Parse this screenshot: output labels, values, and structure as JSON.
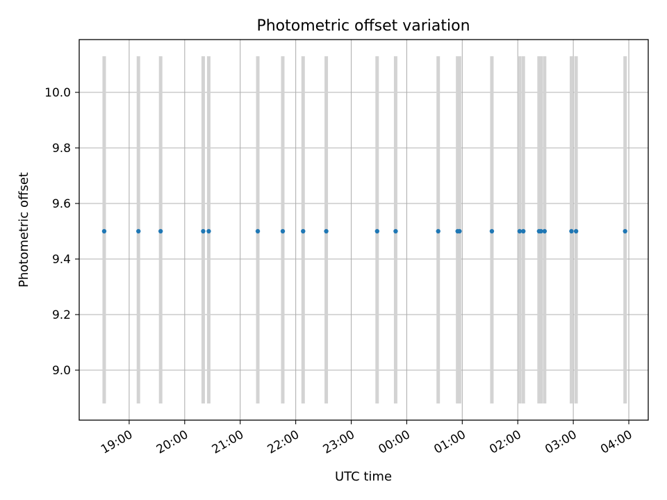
{
  "chart_data": {
    "type": "scatter",
    "title": "Photometric offset variation",
    "xlabel": "UTC time",
    "ylabel": "Photometric offset",
    "x_unit": "UTC time (HH:MM, wraps past midnight)",
    "xlim": [
      "18:06",
      "04:21"
    ],
    "ylim": [
      8.82,
      10.19
    ],
    "x_ticks": [
      "19:00",
      "20:00",
      "21:00",
      "22:00",
      "23:00",
      "00:00",
      "01:00",
      "02:00",
      "03:00",
      "04:00"
    ],
    "y_ticks": [
      "9.0",
      "9.2",
      "9.4",
      "9.6",
      "9.8",
      "10.0"
    ],
    "y_tick_values": [
      9.0,
      9.2,
      9.4,
      9.6,
      9.8,
      10.0
    ],
    "grid": true,
    "error_bar_range": [
      8.88,
      10.13
    ],
    "error_bar_color": "#d3d3d3",
    "point_color": "#1f77b4",
    "points": [
      {
        "time": "18:33",
        "offset": 9.5
      },
      {
        "time": "19:10",
        "offset": 9.5
      },
      {
        "time": "19:34",
        "offset": 9.5
      },
      {
        "time": "20:20",
        "offset": 9.5
      },
      {
        "time": "20:26",
        "offset": 9.5
      },
      {
        "time": "21:19",
        "offset": 9.5
      },
      {
        "time": "21:46",
        "offset": 9.5
      },
      {
        "time": "22:08",
        "offset": 9.5
      },
      {
        "time": "22:33",
        "offset": 9.5
      },
      {
        "time": "23:28",
        "offset": 9.5
      },
      {
        "time": "23:48",
        "offset": 9.5
      },
      {
        "time": "00:34",
        "offset": 9.5
      },
      {
        "time": "00:55",
        "offset": 9.5
      },
      {
        "time": "00:57",
        "offset": 9.5
      },
      {
        "time": "01:32",
        "offset": 9.5
      },
      {
        "time": "02:02",
        "offset": 9.5
      },
      {
        "time": "02:06",
        "offset": 9.5
      },
      {
        "time": "02:23",
        "offset": 9.5
      },
      {
        "time": "02:25",
        "offset": 9.5
      },
      {
        "time": "02:29",
        "offset": 9.5
      },
      {
        "time": "02:58",
        "offset": 9.5
      },
      {
        "time": "03:03",
        "offset": 9.5
      },
      {
        "time": "03:56",
        "offset": 9.5
      }
    ]
  }
}
